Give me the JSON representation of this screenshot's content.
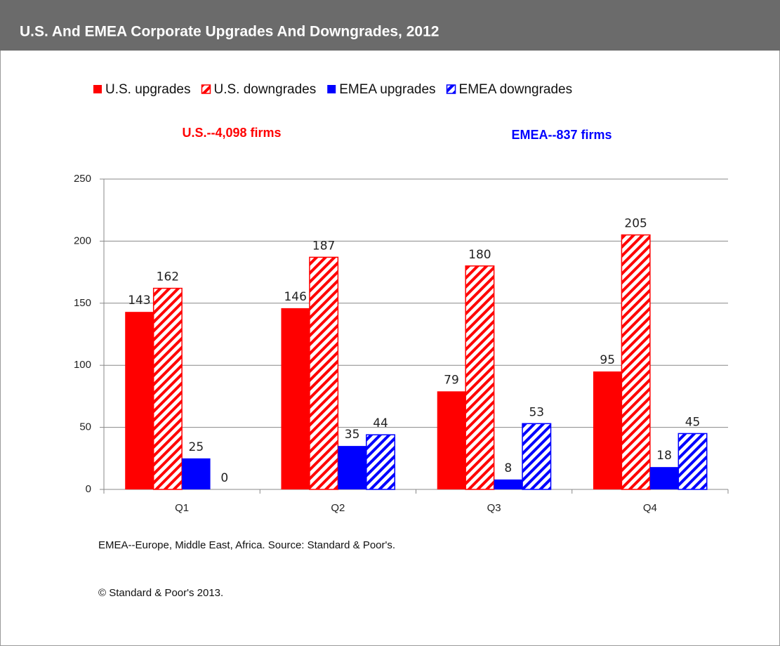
{
  "chart_data": {
    "type": "bar",
    "title": "U.S. And EMEA Corporate Upgrades And Downgrades, 2012",
    "annotations": [
      {
        "text": "U.S.--4,098 firms",
        "color": "#ff0000"
      },
      {
        "text": "EMEA--837 firms",
        "color": "#0000ff"
      }
    ],
    "categories": [
      "Q1",
      "Q2",
      "Q3",
      "Q4"
    ],
    "series": [
      {
        "name": "U.S. upgrades",
        "color": "#ff0000",
        "hatched": false,
        "values": [
          143,
          146,
          79,
          95
        ]
      },
      {
        "name": "U.S. downgrades",
        "color": "#ff0000",
        "hatched": true,
        "values": [
          162,
          187,
          180,
          205
        ]
      },
      {
        "name": "EMEA upgrades",
        "color": "#0000ff",
        "hatched": false,
        "values": [
          25,
          35,
          8,
          18
        ]
      },
      {
        "name": "EMEA downgrades",
        "color": "#0000ff",
        "hatched": true,
        "values": [
          0,
          44,
          53,
          45
        ]
      }
    ],
    "ylim": [
      0,
      250
    ],
    "yticks": [
      0,
      50,
      100,
      150,
      200,
      250
    ],
    "grid": true,
    "footnotes": [
      "EMEA--Europe,  Middle East, Africa. Source: Standard & Poor's.",
      "© Standard & Poor's 2013."
    ]
  }
}
